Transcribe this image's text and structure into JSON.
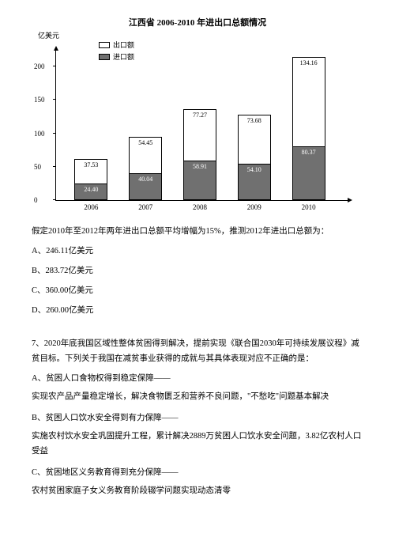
{
  "chart": {
    "title": "江西省 2006-2010 年进出口总额情况",
    "y_axis_label": "亿美元",
    "legend": {
      "export": "出口额",
      "import": "进口额"
    },
    "y_ticks": [
      0,
      50,
      100,
      150,
      200
    ],
    "y_max": 225,
    "export_color": "#ffffff",
    "import_color": "#707070",
    "border_color": "#000000",
    "bars": [
      {
        "year": "2006",
        "import": 24.4,
        "export": 37.53,
        "import_label": "24.40",
        "export_label": "37.53"
      },
      {
        "year": "2007",
        "import": 40.04,
        "export": 54.45,
        "import_label": "40.04",
        "export_label": "54.45"
      },
      {
        "year": "2008",
        "import": 58.91,
        "export": 77.27,
        "import_label": "58.91",
        "export_label": "77.27"
      },
      {
        "year": "2009",
        "import": 54.1,
        "export": 73.68,
        "import_label": "54.10",
        "export_label": "73.68"
      },
      {
        "year": "2010",
        "import": 80.37,
        "export": 134.16,
        "import_label": "80.37",
        "export_label": "134.16"
      }
    ]
  },
  "q_prev": {
    "stem": "假定2010年至2012年两年进出口总额平均增幅为15%，推测2012年进出口总额为：",
    "optA": "A、246.11亿美元",
    "optB": "B、283.72亿美元",
    "optC": "C、360.00亿美元",
    "optD": "D、260.00亿美元"
  },
  "q7": {
    "stem": "7、2020年底我国区域性整体贫困得到解决，提前实现《联合国2030年可持续发展议程》减贫目标。下列关于我国在减贫事业获得的成就与其具体表现对应不正确的是：",
    "optA_title": "A、贫困人口食物权得到稳定保障——",
    "optA_desc": "实现农产品产量稳定增长，解决食物匮乏和营养不良问题，\"不愁吃\"问题基本解决",
    "optB_title": "B、贫困人口饮水安全得到有力保障——",
    "optB_desc": "实施农村饮水安全巩固提升工程，累计解决2889万贫困人口饮水安全问题，3.82亿农村人口受益",
    "optC_title": "C、贫困地区义务教育得到充分保障——",
    "optC_desc": "农村贫困家庭子女义务教育阶段辍学问题实现动态清零"
  }
}
